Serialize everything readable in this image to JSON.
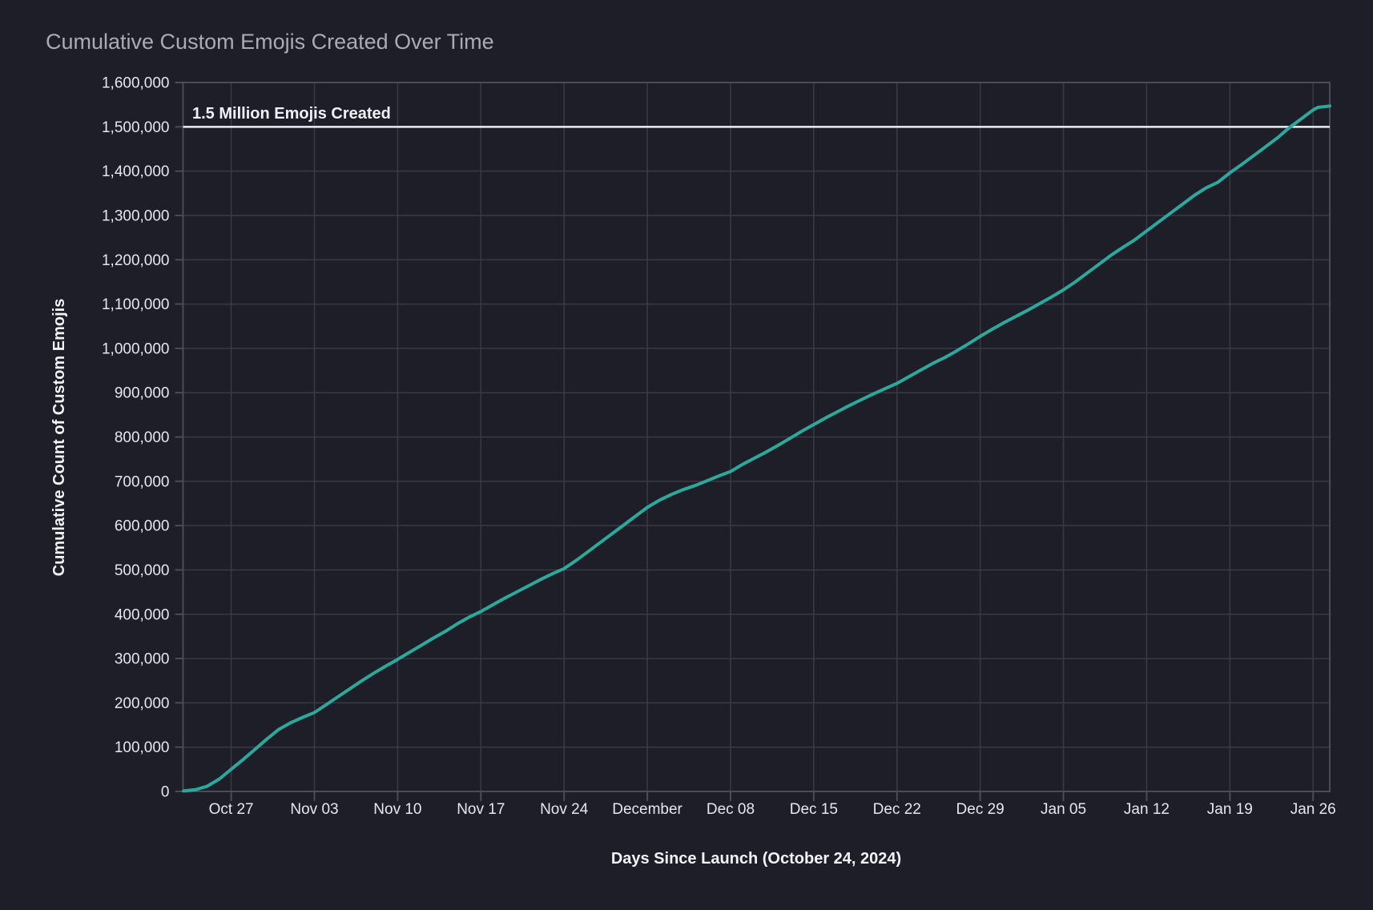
{
  "chart_data": {
    "type": "line",
    "title": "Cumulative Custom Emojis Created Over Time",
    "xlabel": "Days Since Launch (October 24, 2024)",
    "ylabel": "Cumulative Count of Custom Emojis",
    "grid": true,
    "legend": "none",
    "xlim_days": [
      -1.05,
      95.4
    ],
    "ylim": [
      0,
      1600000
    ],
    "x_tick_days": [
      3,
      10,
      17,
      24,
      31,
      38,
      45,
      52,
      59,
      66,
      73,
      80,
      87,
      94
    ],
    "x_tick_labels": [
      "Oct 27",
      "Nov 03",
      "Nov 10",
      "Nov 17",
      "Nov 24",
      "December",
      "Dec 08",
      "Dec 15",
      "Dec 22",
      "Dec 29",
      "Jan 05",
      "Jan 12",
      "Jan 19",
      "Jan 26"
    ],
    "y_tick_values": [
      0,
      100000,
      200000,
      300000,
      400000,
      500000,
      600000,
      700000,
      800000,
      900000,
      1000000,
      1100000,
      1200000,
      1300000,
      1400000,
      1500000,
      1600000
    ],
    "y_tick_labels": [
      "0",
      "100,000",
      "200,000",
      "300,000",
      "400,000",
      "500,000",
      "600,000",
      "700,000",
      "800,000",
      "900,000",
      "1,000,000",
      "1,100,000",
      "1,200,000",
      "1,300,000",
      "1,400,000",
      "1,500,000",
      "1,600,000"
    ],
    "reference_line": {
      "y": 1500000,
      "label": "1.5 Million Emojis Created",
      "color": "#eceef4"
    },
    "series": [
      {
        "name": "cumulative-custom-emojis",
        "color": "#2ca99c",
        "x": [
          -1,
          0,
          1,
          2,
          3,
          4,
          5,
          6,
          7,
          8,
          9,
          10,
          11,
          12,
          13,
          14,
          15,
          16,
          17,
          18,
          19,
          20,
          21,
          22,
          23,
          24,
          25,
          26,
          27,
          28,
          29,
          30,
          31,
          32,
          33,
          34,
          35,
          36,
          37,
          38,
          39,
          40,
          41,
          42,
          43,
          44,
          45,
          46,
          47,
          48,
          49,
          50,
          51,
          52,
          53,
          54,
          55,
          56,
          57,
          58,
          59,
          60,
          61,
          62,
          63,
          64,
          65,
          66,
          67,
          68,
          69,
          70,
          71,
          72,
          73,
          74,
          75,
          76,
          77,
          78,
          79,
          80,
          81,
          82,
          83,
          84,
          85,
          86,
          87,
          88,
          89,
          90,
          91,
          92,
          93,
          94,
          94.4,
          95.4
        ],
        "y": [
          1000,
          4000,
          12000,
          28000,
          50000,
          72000,
          95000,
          118000,
          140000,
          155000,
          167000,
          178000,
          196000,
          214000,
          232000,
          250000,
          267000,
          283000,
          298000,
          314000,
          330000,
          346000,
          361000,
          378000,
          393000,
          406000,
          421000,
          436000,
          450000,
          464000,
          478000,
          491000,
          503000,
          521000,
          541000,
          561000,
          581000,
          601000,
          621000,
          641000,
          657000,
          670000,
          681000,
          690000,
          701000,
          712000,
          722000,
          738000,
          752000,
          766000,
          781000,
          797000,
          813000,
          828000,
          843000,
          857000,
          871000,
          884000,
          897000,
          909000,
          921000,
          936000,
          951000,
          966000,
          979000,
          994000,
          1010000,
          1027000,
          1043000,
          1058000,
          1072000,
          1086000,
          1101000,
          1116000,
          1132000,
          1150000,
          1170000,
          1190000,
          1210000,
          1228000,
          1245000,
          1265000,
          1285000,
          1305000,
          1325000,
          1345000,
          1362000,
          1375000,
          1396000,
          1415000,
          1435000,
          1455000,
          1475000,
          1498000,
          1518000,
          1538000,
          1544000,
          1547000
        ]
      }
    ],
    "colors": {
      "background": "#1e1e28",
      "gridline": "#3a3a47",
      "axis_border": "#4b4b59",
      "line": "#2ca99c",
      "reference_line": "#eceef4",
      "title_text": "#a9abb7",
      "tick_text": "#e6e7ec",
      "axis_title_text": "#f2f3f7"
    }
  }
}
